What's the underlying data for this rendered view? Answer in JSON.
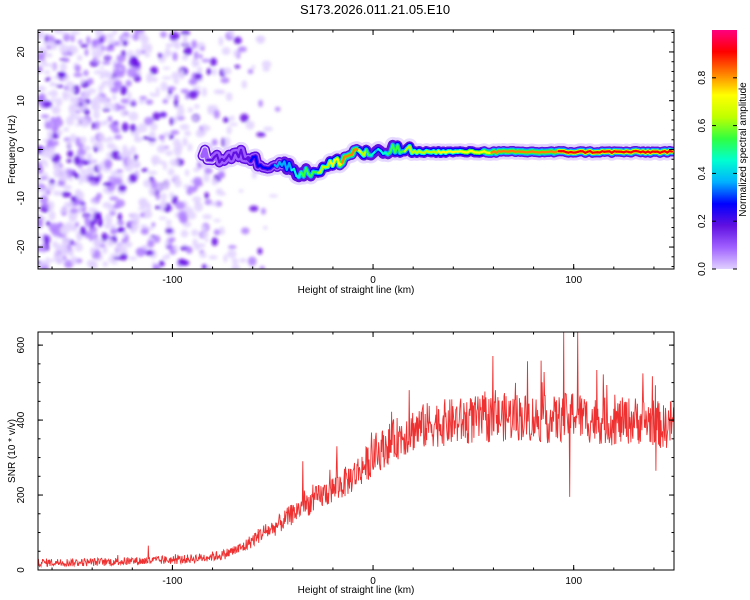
{
  "title": "S173.2026.011.21.05.E10",
  "chart_data": [
    {
      "type": "heatmap",
      "title": "S173.2026.011.21.05.E10",
      "xlabel": "Height of straight line (km)",
      "ylabel": "Frequency (Hz)",
      "xlim": [
        -167,
        150
      ],
      "ylim": [
        -24.5,
        24.5
      ],
      "xticks": [
        -100,
        0,
        100
      ],
      "yticks": [
        -20,
        -10,
        0,
        10,
        20
      ],
      "colorbar": {
        "label": "Normalized spectral amplitude",
        "range": [
          0,
          1
        ],
        "ticks": [
          "0.0",
          "0.2",
          "0.4",
          "0.6",
          "0.8"
        ],
        "colors": [
          "#e0d0ff",
          "#a060ff",
          "#6010e0",
          "#0000ff",
          "#00b0ff",
          "#00ffd0",
          "#30ff40",
          "#c0ff00",
          "#ffff00",
          "#ff8000",
          "#ff0000",
          "#ff0080"
        ]
      },
      "ridge": {
        "x": [
          -85,
          -75,
          -65,
          -55,
          -45,
          -35,
          -25,
          -15,
          -8,
          -3,
          3,
          10,
          20,
          40,
          60,
          80,
          100,
          120,
          150
        ],
        "frequency": [
          -1,
          -2,
          -1,
          -3,
          -3,
          -5,
          -4,
          -2,
          0,
          -1,
          -1,
          0,
          -0.5,
          -0.5,
          -0.5,
          -0.5,
          -0.5,
          -0.5,
          -0.5
        ],
        "amplitude": [
          0.15,
          0.2,
          0.2,
          0.3,
          0.35,
          0.5,
          0.6,
          0.75,
          0.8,
          0.6,
          0.4,
          0.55,
          0.6,
          0.7,
          0.75,
          0.8,
          0.85,
          0.85,
          0.9
        ]
      },
      "noise_region": {
        "x_from": -167,
        "x_to": -55
      }
    },
    {
      "type": "line",
      "xlabel": "Height of straight line (km)",
      "ylabel": "SNR (10 * v/v)",
      "xlim": [
        -167,
        150
      ],
      "ylim": [
        0,
        635
      ],
      "xticks": [
        -100,
        0,
        100
      ],
      "yticks": [
        0,
        200,
        400,
        600
      ],
      "series": [
        {
          "name": "SNR",
          "color": "#ee3030",
          "x": [
            -167,
            -150,
            -130,
            -110,
            -95,
            -85,
            -75,
            -65,
            -55,
            -50,
            -45,
            -40,
            -35,
            -30,
            -25,
            -20,
            -15,
            -10,
            -5,
            0,
            5,
            10,
            15,
            20,
            30,
            40,
            50,
            60,
            70,
            80,
            90,
            95,
            100,
            105,
            110,
            120,
            130,
            140,
            145,
            150
          ],
          "y": [
            20,
            20,
            22,
            25,
            28,
            33,
            40,
            60,
            100,
            110,
            130,
            150,
            170,
            185,
            200,
            215,
            230,
            250,
            275,
            300,
            325,
            345,
            360,
            375,
            390,
            395,
            400,
            405,
            410,
            405,
            400,
            405,
            420,
            405,
            400,
            395,
            400,
            395,
            380,
            400
          ]
        }
      ],
      "spikes": [
        {
          "x": -112,
          "y": 65
        },
        {
          "x": -35,
          "y": 290
        },
        {
          "x": -18,
          "y": 330
        },
        {
          "x": 18,
          "y": 480
        },
        {
          "x": 95,
          "y": 635
        },
        {
          "x": 102,
          "y": 635
        },
        {
          "x": 98,
          "y": 195
        },
        {
          "x": 141,
          "y": 265
        }
      ]
    }
  ]
}
